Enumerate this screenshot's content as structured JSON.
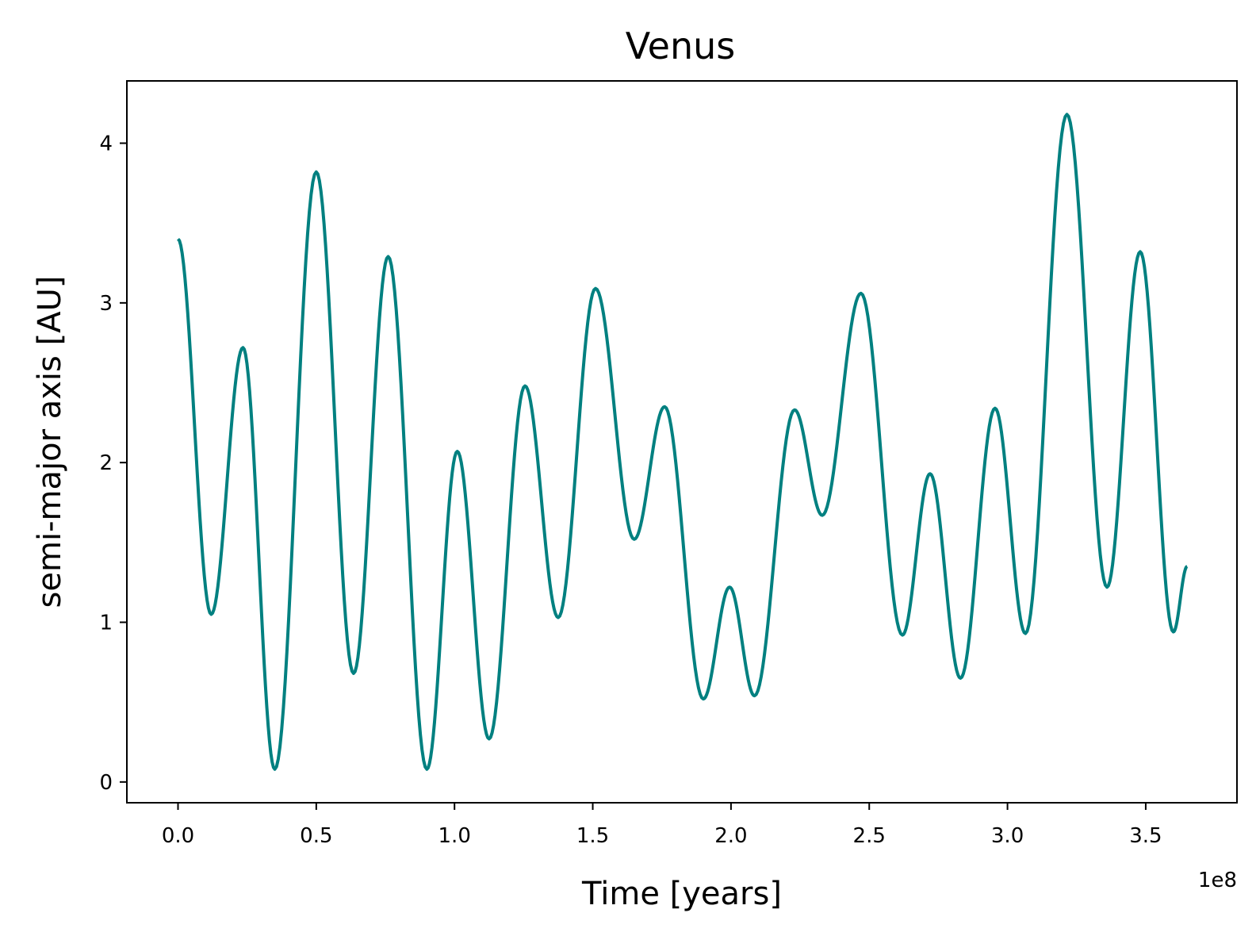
{
  "chart_data": {
    "type": "line",
    "title": "Venus",
    "xlabel": "Time [years]",
    "ylabel": "semi-major axis [AU]",
    "x_offset_label": "1e8",
    "xlim": [
      -0.185,
      3.83
    ],
    "ylim": [
      -0.13,
      4.39
    ],
    "x_ticks": [
      0.0,
      0.5,
      1.0,
      1.5,
      2.0,
      2.5,
      3.0,
      3.5
    ],
    "x_tick_labels": [
      "0.0",
      "0.5",
      "1.0",
      "1.5",
      "2.0",
      "2.5",
      "3.0",
      "3.5"
    ],
    "y_ticks": [
      0,
      1,
      2,
      3,
      4
    ],
    "y_tick_labels": [
      "0",
      "1",
      "2",
      "3",
      "4"
    ],
    "grid": false,
    "legend": "none",
    "line_color": "#008080",
    "series": [
      {
        "x": [
          0.0,
          0.12,
          0.235,
          0.35,
          0.5,
          0.635,
          0.76,
          0.9,
          1.01,
          1.125,
          1.255,
          1.375,
          1.51,
          1.65,
          1.76,
          1.9,
          1.995,
          2.085,
          2.23,
          2.33,
          2.47,
          2.62,
          2.72,
          2.83,
          2.955,
          3.065,
          3.215,
          3.36,
          3.48,
          3.6,
          3.65
        ],
        "y": [
          3.4,
          1.05,
          2.72,
          0.08,
          3.82,
          0.68,
          3.29,
          0.08,
          2.07,
          0.27,
          2.48,
          1.03,
          3.09,
          1.52,
          2.35,
          0.52,
          1.22,
          0.54,
          2.33,
          1.67,
          3.06,
          0.92,
          1.93,
          0.65,
          2.34,
          0.93,
          4.18,
          1.22,
          3.32,
          0.94,
          1.35
        ]
      }
    ]
  }
}
